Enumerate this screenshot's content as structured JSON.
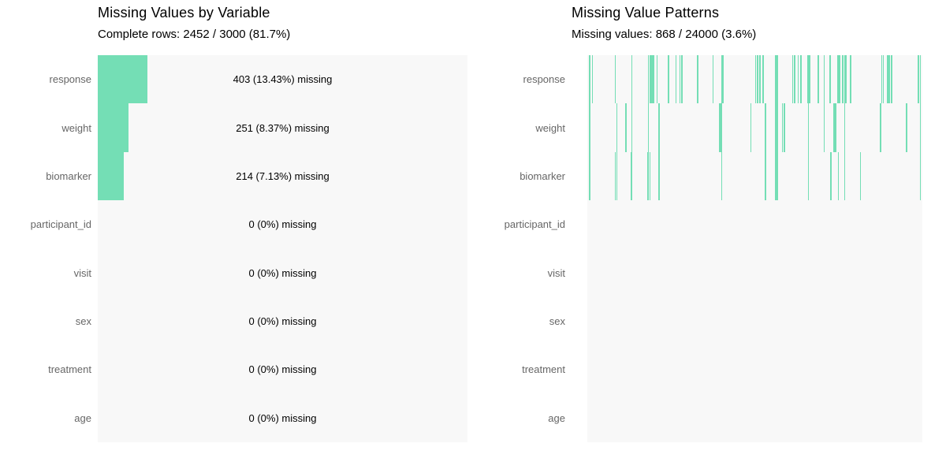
{
  "colors": {
    "accent_green": "#74deb5",
    "plot_background": "#f8f8f8",
    "axis_label_gray": "#666666",
    "text_black": "#000000",
    "page_background": "#ffffff"
  },
  "chart_data": [
    {
      "type": "bar",
      "orientation": "horizontal",
      "title": "Missing Values by Variable",
      "subtitle": "Complete rows: 2452 / 3000 (81.7%)",
      "complete_rows": 2452,
      "total_rows": 3000,
      "complete_pct": 81.7,
      "xlim": [
        0,
        3000
      ],
      "grid": false,
      "legend": false,
      "categories": [
        "response",
        "weight",
        "biomarker",
        "participant_id",
        "visit",
        "sex",
        "treatment",
        "age"
      ],
      "values": [
        403,
        251,
        214,
        0,
        0,
        0,
        0,
        0
      ],
      "missing_pcts": [
        13.43,
        8.37,
        7.13,
        0,
        0,
        0,
        0,
        0
      ],
      "value_labels": [
        "403 (13.43%) missing",
        "251 (8.37%) missing",
        "214 (7.13%) missing",
        "0 (0%) missing",
        "0 (0%) missing",
        "0 (0%) missing",
        "0 (0%) missing",
        "0 (0%) missing"
      ]
    },
    {
      "type": "heatmap",
      "title": "Missing Value Patterns",
      "subtitle": "Missing values: 868 / 24000 (3.6%)",
      "missing_cells": 868,
      "total_cells": 24000,
      "missing_pct": 3.6,
      "grid": false,
      "legend": false,
      "categories": [
        "response",
        "weight",
        "biomarker",
        "participant_id",
        "visit",
        "sex",
        "treatment",
        "age"
      ],
      "rows": [
        {
          "name": "response",
          "ticks": [
            0.005,
            0.014,
            0.082,
            0.131,
            0.18,
            0.185,
            0.189,
            0.193,
            0.196,
            0.206,
            0.241,
            0.263,
            0.275,
            0.281,
            0.328,
            0.373,
            0.501,
            0.506,
            0.514,
            0.523,
            0.611,
            0.617,
            0.628,
            0.636,
            0.688,
            0.705,
            0.723,
            0.746,
            0.751,
            0.76,
            0.767,
            0.77,
            0.784,
            0.877,
            0.882,
            0.906,
            0.987,
            0.992
          ],
          "thick_ticks": [
            0.399,
            0.561,
            0.657,
            0.895
          ]
        },
        {
          "name": "weight",
          "ticks": [
            0.005,
            0.086,
            0.114,
            0.131,
            0.18,
            0.212,
            0.487,
            0.53,
            0.58,
            0.586,
            0.658,
            0.705,
            0.733,
            0.737,
            0.741,
            0.767,
            0.874,
            0.951,
            0.992
          ],
          "thick_ticks": [
            0.394,
            0.561
          ]
        },
        {
          "name": "biomarker",
          "ticks": [
            0.005,
            0.082,
            0.086,
            0.13,
            0.179,
            0.185,
            0.212,
            0.399,
            0.53,
            0.658,
            0.725,
            0.748,
            0.767,
            0.814,
            0.992
          ],
          "thick_ticks": [
            0.561
          ]
        },
        {
          "name": "participant_id",
          "ticks": [],
          "thick_ticks": []
        },
        {
          "name": "visit",
          "ticks": [],
          "thick_ticks": []
        },
        {
          "name": "sex",
          "ticks": [],
          "thick_ticks": []
        },
        {
          "name": "treatment",
          "ticks": [],
          "thick_ticks": []
        },
        {
          "name": "age",
          "ticks": [],
          "thick_ticks": []
        }
      ]
    }
  ]
}
